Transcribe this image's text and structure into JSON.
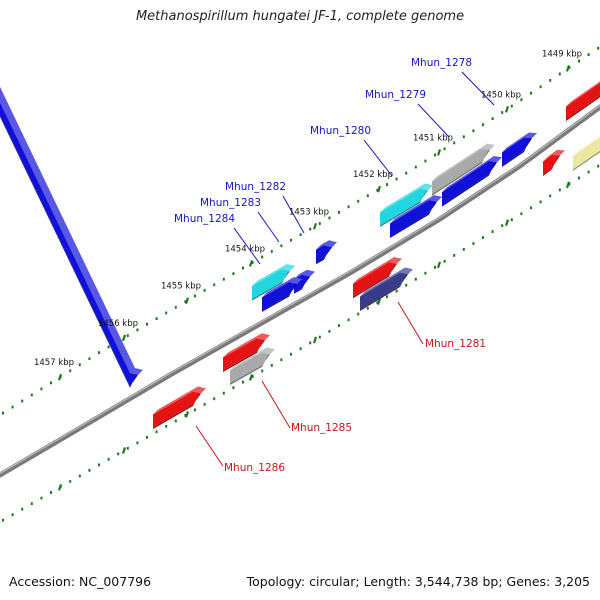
{
  "title": "Methanospirillum hungatei JF-1, complete genome",
  "footer": {
    "accession": "Accession: NC_007796",
    "summary": "Topology: circular; Length: 3,544,738 bp; Genes: 3,205"
  },
  "colors": {
    "backbone": "#7a7a7a",
    "tick": "#1a7a1a",
    "label_plus": "#1515c8",
    "label_minus": "#c81515"
  },
  "kbp_ticks": [
    {
      "kbp": 1449,
      "label": "1449 kbp"
    },
    {
      "kbp": 1450,
      "label": "1450 kbp"
    },
    {
      "kbp": 1451,
      "label": "1451 kbp"
    },
    {
      "kbp": 1452,
      "label": "1452 kbp"
    },
    {
      "kbp": 1453,
      "label": "1453 kbp"
    },
    {
      "kbp": 1454,
      "label": "1454 kbp"
    },
    {
      "kbp": 1455,
      "label": "1455 kbp"
    },
    {
      "kbp": 1456,
      "label": "1456 kbp"
    },
    {
      "kbp": 1457,
      "label": "1457 kbp"
    }
  ],
  "gene_labels": [
    {
      "name": "Mhun_1278",
      "strand": "plus"
    },
    {
      "name": "Mhun_1279",
      "strand": "plus"
    },
    {
      "name": "Mhun_1280",
      "strand": "plus"
    },
    {
      "name": "Mhun_1281",
      "strand": "minus"
    },
    {
      "name": "Mhun_1282",
      "strand": "plus"
    },
    {
      "name": "Mhun_1283",
      "strand": "plus"
    },
    {
      "name": "Mhun_1284",
      "strand": "plus"
    },
    {
      "name": "Mhun_1285",
      "strand": "minus"
    },
    {
      "name": "Mhun_1286",
      "strand": "minus"
    }
  ],
  "features": [
    {
      "id": "f-1278-cds",
      "gene": "Mhun_1278",
      "color": "#1010d8",
      "type": "cds"
    },
    {
      "id": "f-1279-gene",
      "gene": "Mhun_1279",
      "color": "#a9a9a9",
      "type": "gene"
    },
    {
      "id": "f-1279-cds",
      "gene": "Mhun_1279",
      "color": "#1010d8",
      "type": "cds"
    },
    {
      "id": "f-1280-gene",
      "gene": "Mhun_1280",
      "color": "#22d6e0",
      "type": "gene"
    },
    {
      "id": "f-1280-cds",
      "gene": "Mhun_1280",
      "color": "#1010d8",
      "type": "cds"
    },
    {
      "id": "f-1281-gene",
      "gene": "Mhun_1281",
      "color": "#e41414",
      "type": "gene"
    },
    {
      "id": "f-1281-cds",
      "gene": "Mhun_1281",
      "color": "#3a3a8a",
      "type": "cds"
    },
    {
      "id": "f-1282-cds",
      "gene": "Mhun_1282",
      "color": "#1010d8",
      "type": "cds"
    },
    {
      "id": "f-1283-cds",
      "gene": "Mhun_1283",
      "color": "#1010d8",
      "type": "cds"
    },
    {
      "id": "f-1284-gene",
      "gene": "Mhun_1284",
      "color": "#22d6e0",
      "type": "gene"
    },
    {
      "id": "f-1284-cds",
      "gene": "Mhun_1284",
      "color": "#1010d8",
      "type": "cds"
    },
    {
      "id": "f-1285-gene",
      "gene": "Mhun_1285",
      "color": "#e41414",
      "type": "gene"
    },
    {
      "id": "f-1285-cds",
      "gene": "Mhun_1285",
      "color": "#a9a9a9",
      "type": "cds"
    },
    {
      "id": "f-1286-cds",
      "gene": "Mhun_1286",
      "color": "#e41414",
      "type": "cds"
    },
    {
      "id": "f-1287-cds",
      "gene": "",
      "color": "#1010d8",
      "type": "cds"
    },
    {
      "id": "f-edge-red-1",
      "gene": "",
      "color": "#e41414",
      "type": "cds"
    },
    {
      "id": "f-edge-red-2",
      "gene": "",
      "color": "#e41414",
      "type": "cds"
    },
    {
      "id": "f-edge-yellow",
      "gene": "",
      "color": "#ece7a0",
      "type": "cds"
    }
  ]
}
